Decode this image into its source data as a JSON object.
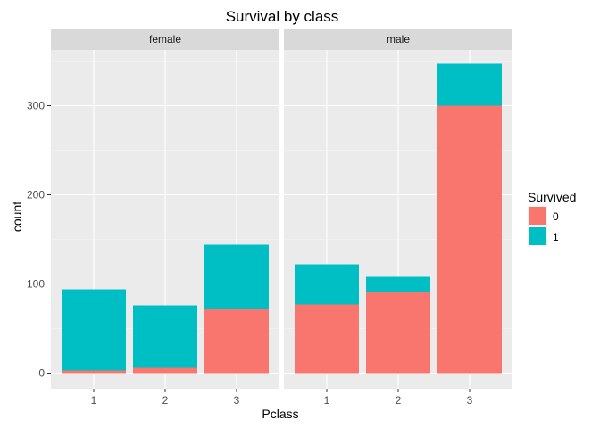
{
  "chart_data": {
    "type": "bar",
    "stacked": true,
    "title": "Survival by class",
    "xlabel": "Pclass",
    "ylabel": "count",
    "ylim": [
      0,
      350
    ],
    "yticks": [
      "0",
      "100",
      "200",
      "300"
    ],
    "categories": [
      "1",
      "2",
      "3"
    ],
    "legend": {
      "title": "Survived",
      "position": "right"
    },
    "grid": true,
    "colors": {
      "0": "#F8766D",
      "1": "#00BFC4"
    },
    "panels": [
      {
        "name": "female",
        "series": [
          {
            "name": "0",
            "values": [
              3,
              6,
              72
            ]
          },
          {
            "name": "1",
            "values": [
              91,
              70,
              72
            ]
          }
        ]
      },
      {
        "name": "male",
        "series": [
          {
            "name": "0",
            "values": [
              77,
              91,
              300
            ]
          },
          {
            "name": "1",
            "values": [
              45,
              17,
              47
            ]
          }
        ]
      }
    ]
  }
}
